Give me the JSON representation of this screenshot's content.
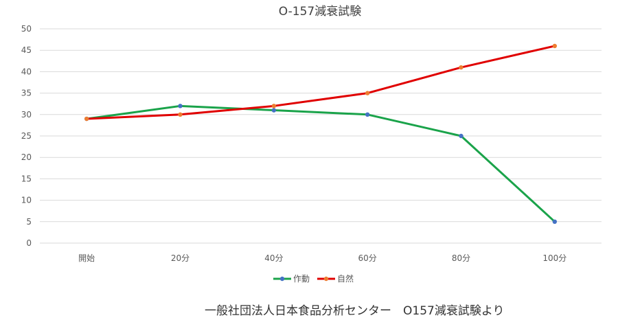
{
  "chart_data": {
    "type": "line",
    "title": "O-157減衰試験",
    "categories": [
      "開始",
      "20分",
      "40分",
      "60分",
      "80分",
      "100分"
    ],
    "ylim": [
      0,
      50
    ],
    "yticks": [
      0,
      5,
      10,
      15,
      20,
      25,
      30,
      35,
      40,
      45,
      50
    ],
    "grid": true,
    "legend_position": "bottom",
    "series": [
      {
        "name": "作動",
        "values": [
          29,
          32,
          31,
          30,
          25,
          5
        ],
        "color": "#1aa34a",
        "marker_color": "#4472c4"
      },
      {
        "name": "自然",
        "values": [
          29,
          30,
          32,
          35,
          41,
          46
        ],
        "color": "#e00000",
        "marker_color": "#ed7d31"
      }
    ]
  },
  "caption": "一般社団法人日本食品分析センター　O157減衰試験より"
}
